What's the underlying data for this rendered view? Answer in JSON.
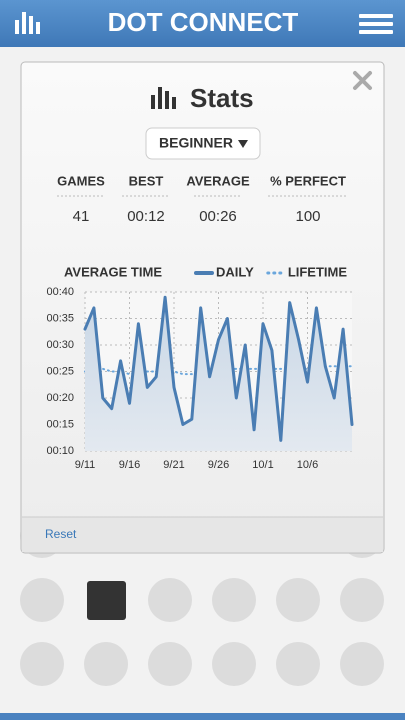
{
  "header": {
    "title": "DOT CONNECT"
  },
  "modal": {
    "title": "Stats",
    "level": "BEGINNER",
    "stats": [
      {
        "label": "GAMES",
        "value": 41
      },
      {
        "label": "BEST",
        "value": "00:12"
      },
      {
        "label": "AVERAGE",
        "value": "00:26"
      },
      {
        "label": "% PERFECT",
        "value": 100
      }
    ],
    "reset": "Reset"
  },
  "chart_data": {
    "type": "line",
    "title": "AVERAGE TIME",
    "categories": [
      "9/11",
      null,
      null,
      null,
      null,
      "9/16",
      null,
      null,
      null,
      null,
      "9/21",
      null,
      null,
      null,
      null,
      "9/26",
      null,
      null,
      null,
      null,
      "10/1",
      null,
      null,
      null,
      null,
      "10/6",
      null,
      null,
      null,
      null,
      null
    ],
    "series": [
      {
        "name": "DAILY",
        "color": "#4a7db3",
        "style": "solid",
        "values": [
          33,
          37,
          20,
          18,
          27,
          19,
          34,
          22,
          24,
          39,
          22,
          15,
          16,
          37,
          24,
          31,
          35,
          20,
          30,
          14,
          34,
          29,
          12,
          38,
          31,
          23,
          37,
          26,
          20,
          33,
          15
        ]
      },
      {
        "name": "LIFETIME",
        "color": "#6aa6dc",
        "style": "dotted",
        "values": [
          25,
          26,
          25.5,
          25,
          25,
          24.5,
          25,
          25,
          25,
          25.5,
          25,
          24.5,
          24.5,
          25,
          25,
          25.5,
          25.5,
          25.5,
          25.5,
          25.5,
          25.5,
          25.5,
          25.5,
          25.5,
          25.5,
          25.5,
          25.5,
          26,
          26,
          26,
          26
        ]
      }
    ],
    "ylim": [
      10,
      40
    ],
    "yticks": [
      {
        "value": 10,
        "label": "00:10"
      },
      {
        "value": 15,
        "label": "00:15"
      },
      {
        "value": 20,
        "label": "00:20"
      },
      {
        "value": 25,
        "label": "00:25"
      },
      {
        "value": 30,
        "label": "00:30"
      },
      {
        "value": 35,
        "label": "00:35"
      },
      {
        "value": 40,
        "label": "00:40"
      }
    ],
    "grid": true,
    "legend": "top-right"
  }
}
